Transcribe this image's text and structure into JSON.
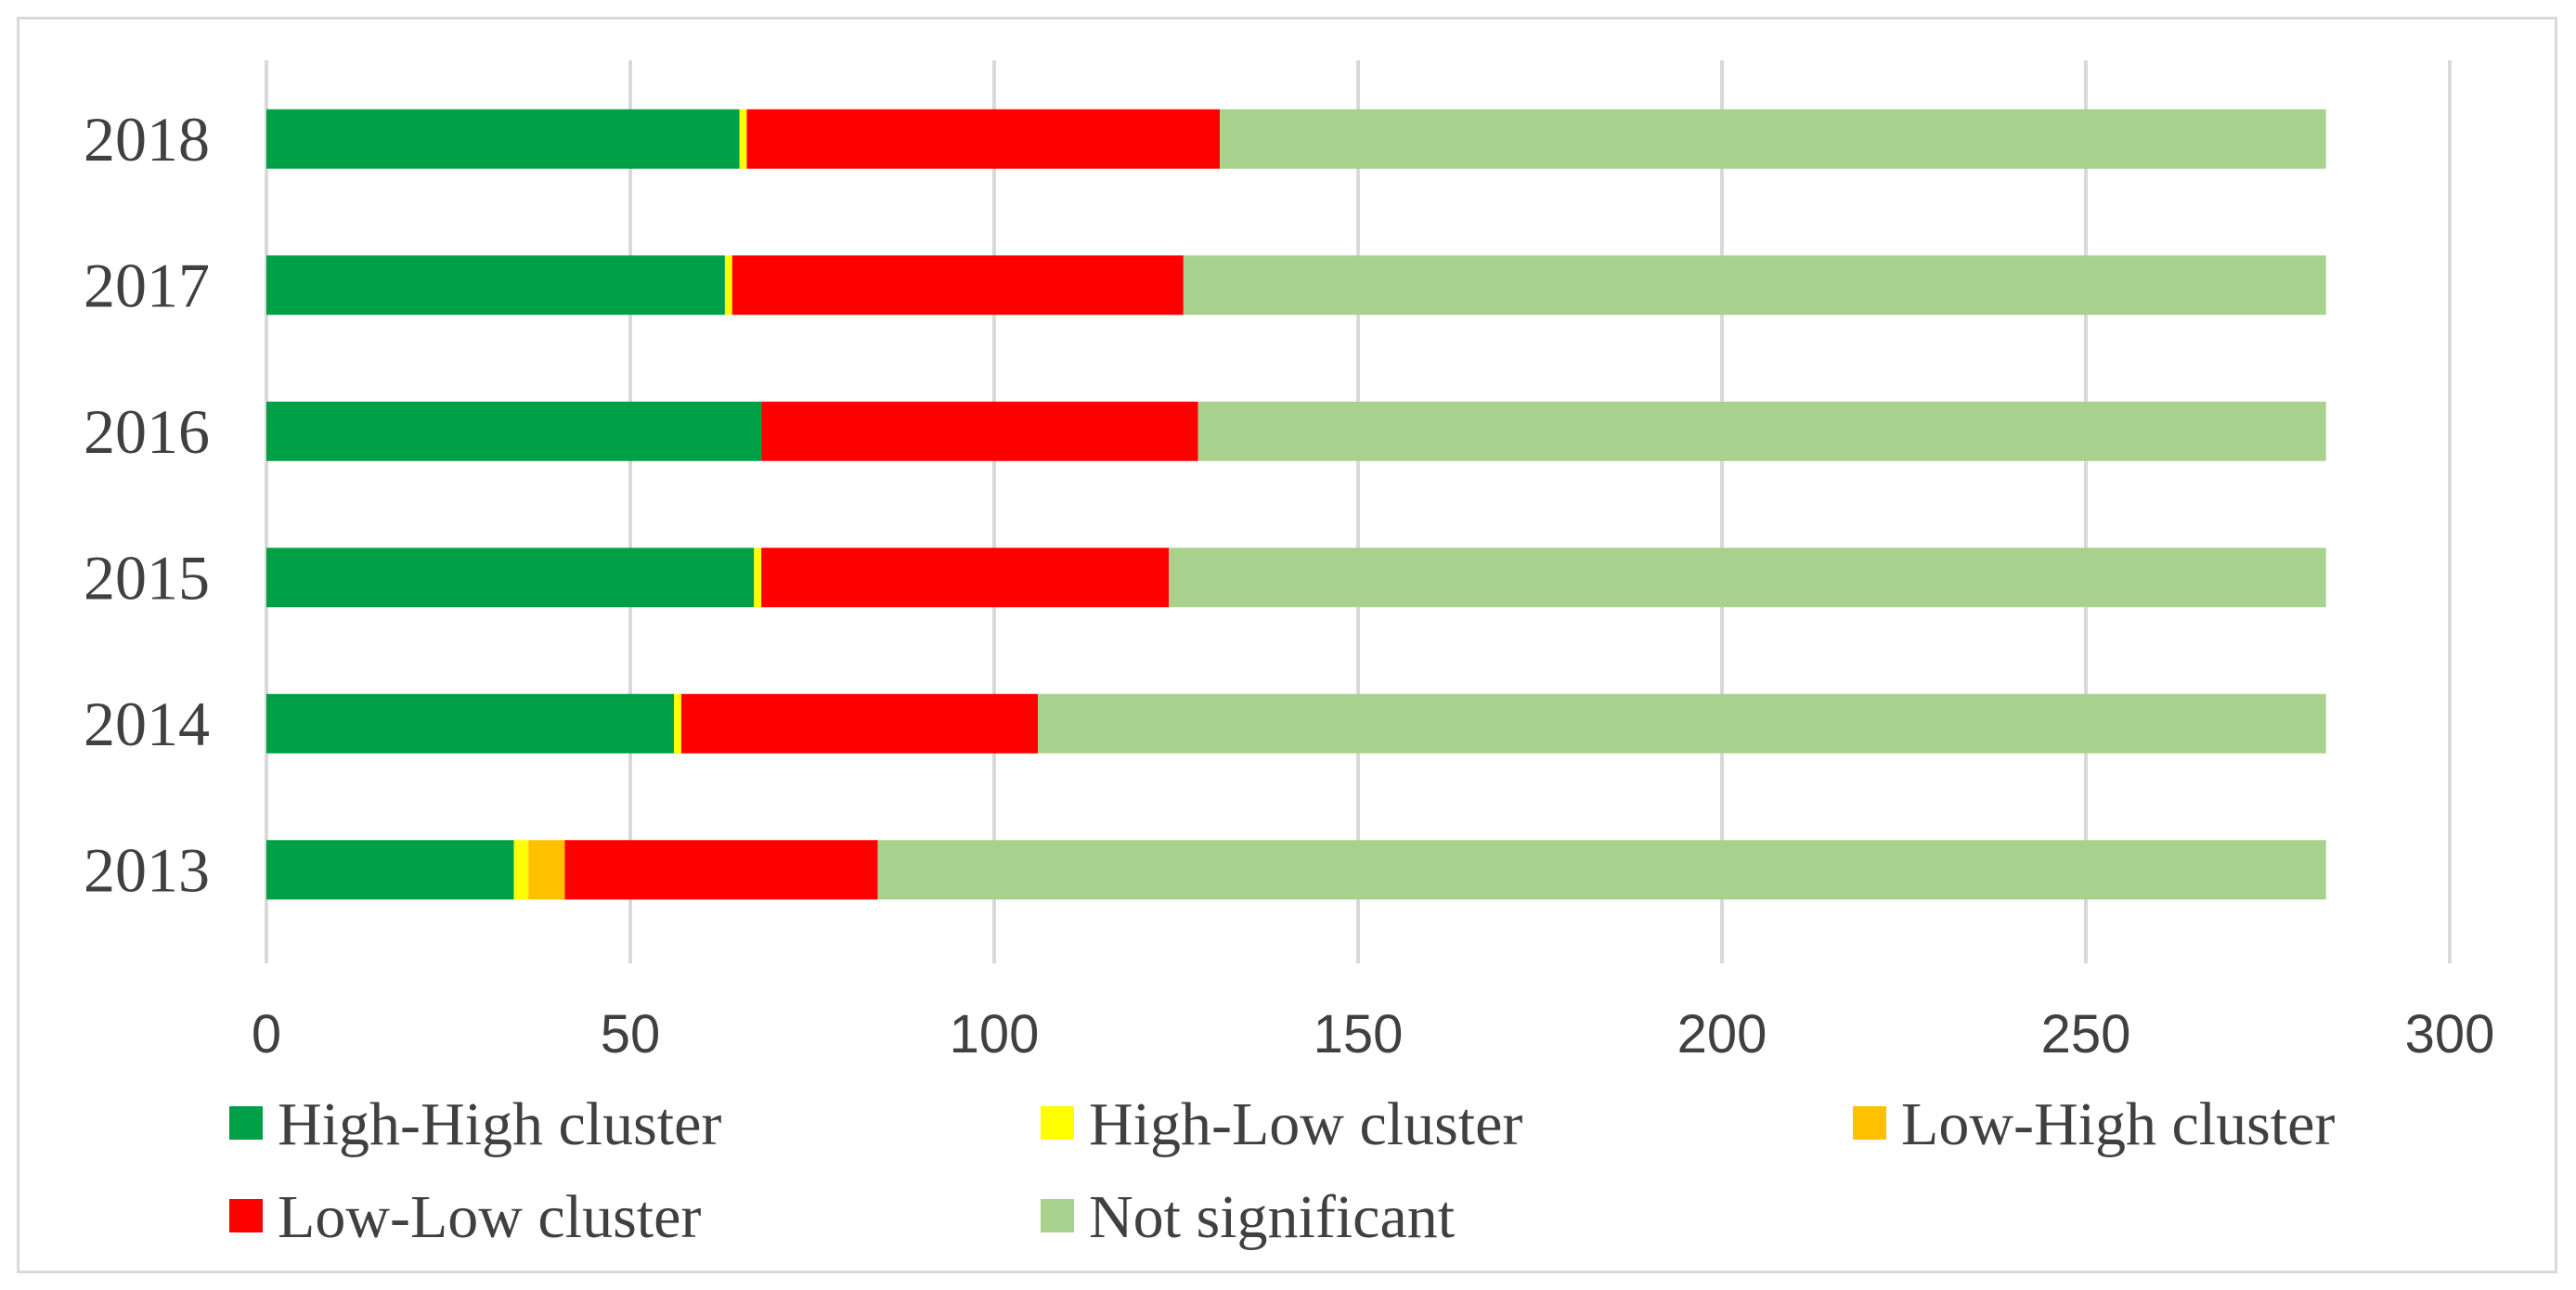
{
  "chart_data": {
    "type": "bar",
    "orientation": "horizontal",
    "stacked": true,
    "categories": [
      "2013",
      "2014",
      "2015",
      "2016",
      "2017",
      "2018"
    ],
    "series": [
      {
        "name": "High-High cluster",
        "color": "#00a046",
        "values": [
          34,
          56,
          67,
          68,
          63,
          65
        ]
      },
      {
        "name": "High-Low cluster",
        "color": "#ffff00",
        "values": [
          2,
          1,
          1,
          0,
          1,
          1
        ]
      },
      {
        "name": "Low-High cluster",
        "color": "#ffc000",
        "values": [
          5,
          0,
          0,
          0,
          0,
          0
        ]
      },
      {
        "name": "Low-Low cluster",
        "color": "#ff0000",
        "values": [
          43,
          49,
          56,
          60,
          62,
          65
        ]
      },
      {
        "name": "Not significant",
        "color": "#a9d18e",
        "values": [
          199,
          177,
          159,
          155,
          157,
          152
        ]
      }
    ],
    "x_ticks": [
      "0",
      "50",
      "100",
      "150",
      "200",
      "250",
      "300"
    ],
    "xlim": [
      0,
      300
    ],
    "gridlines": "vertical",
    "legend_position": "bottom"
  }
}
